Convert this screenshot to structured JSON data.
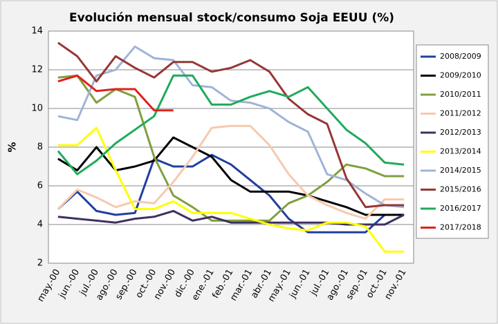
{
  "chart_data": {
    "type": "line",
    "title": "Evolución mensual stock/consumo Soja EEUU (%)",
    "y_label": "%",
    "categories": [
      "may.-00",
      "jun.-00",
      "jul.-00",
      "ago.-00",
      "sep.-00",
      "oct.-00",
      "nov.-00",
      "dic.-00",
      "ene.-01",
      "feb.-01",
      "mar.-01",
      "abr.-01",
      "may.-01",
      "jun.-01",
      "jul.-01",
      "ago.-01",
      "sep.-01",
      "oct.-01",
      "nov.-01"
    ],
    "ylim": [
      2,
      14
    ],
    "yticks": [
      2,
      4,
      6,
      8,
      10,
      12,
      14
    ],
    "grid": true,
    "legend": "right",
    "series": [
      {
        "name": "2008/2009",
        "color": "#1f3f9f",
        "values": [
          4.8,
          5.7,
          4.7,
          4.5,
          4.6,
          7.4,
          7.0,
          7.0,
          7.6,
          7.1,
          6.3,
          5.5,
          4.3,
          3.6,
          3.6,
          3.6,
          3.6,
          4.5,
          4.5
        ]
      },
      {
        "name": "2009/2010",
        "color": "#000000",
        "values": [
          7.4,
          6.8,
          8.0,
          6.8,
          7.0,
          7.3,
          8.5,
          8.0,
          7.5,
          6.3,
          5.7,
          5.7,
          5.7,
          5.5,
          5.2,
          4.9,
          4.5,
          4.5,
          4.5
        ]
      },
      {
        "name": "2010/2011",
        "color": "#7f9f3f",
        "values": [
          11.6,
          11.7,
          10.3,
          11.0,
          10.6,
          7.5,
          5.5,
          4.9,
          4.2,
          4.2,
          4.2,
          4.2,
          5.1,
          5.5,
          6.2,
          7.1,
          6.9,
          6.5,
          6.5
        ]
      },
      {
        "name": "2011/2012",
        "color": "#f7c9ae",
        "values": [
          4.8,
          5.8,
          5.4,
          4.9,
          5.2,
          5.1,
          6.2,
          7.5,
          9.0,
          9.1,
          9.1,
          8.1,
          6.6,
          5.5,
          5.0,
          4.6,
          4.3,
          5.3,
          5.3
        ]
      },
      {
        "name": "2012/2013",
        "color": "#3f2f5f",
        "values": [
          4.4,
          4.3,
          4.2,
          4.1,
          4.3,
          4.4,
          4.7,
          4.2,
          4.4,
          4.1,
          4.1,
          4.1,
          4.1,
          4.1,
          4.1,
          4.0,
          4.0,
          4.0,
          4.5
        ]
      },
      {
        "name": "2013/2014",
        "color": "#ffff00",
        "values": [
          8.1,
          8.1,
          9.0,
          6.8,
          4.8,
          4.8,
          5.2,
          4.6,
          4.6,
          4.6,
          4.3,
          4.0,
          3.8,
          3.7,
          4.1,
          4.1,
          3.9,
          2.6,
          2.6
        ]
      },
      {
        "name": "2014/2015",
        "color": "#9fb4d6",
        "values": [
          9.6,
          9.4,
          11.7,
          12.0,
          13.2,
          12.6,
          12.5,
          11.2,
          11.1,
          10.4,
          10.3,
          10.0,
          9.3,
          8.8,
          6.6,
          6.3,
          5.6,
          5.0,
          4.9
        ]
      },
      {
        "name": "2015/2016",
        "color": "#953735",
        "values": [
          13.4,
          12.7,
          11.4,
          12.7,
          12.1,
          11.6,
          12.4,
          12.4,
          11.9,
          12.1,
          12.5,
          11.9,
          10.5,
          9.7,
          9.2,
          6.4,
          4.9,
          5.0,
          5.0
        ]
      },
      {
        "name": "2016/2017",
        "color": "#1faa5a",
        "values": [
          7.8,
          6.6,
          7.3,
          8.2,
          8.9,
          9.6,
          11.7,
          11.7,
          10.2,
          10.2,
          10.6,
          10.9,
          10.6,
          11.1,
          10.0,
          8.9,
          8.2,
          7.2,
          7.1
        ]
      },
      {
        "name": "2017/2018",
        "color": "#e0201b",
        "values": [
          11.4,
          11.7,
          10.9,
          11.0,
          11.0,
          9.9,
          9.9,
          null,
          null,
          null,
          null,
          null,
          null,
          null,
          null,
          null,
          null,
          null,
          null
        ]
      }
    ]
  }
}
